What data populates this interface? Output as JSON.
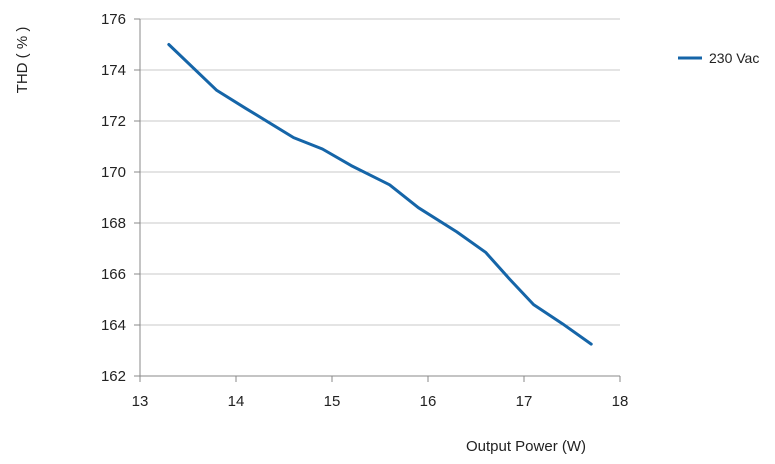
{
  "chart_data": {
    "type": "line",
    "xlabel": "Output Power (W)",
    "ylabel": "THD ( % )",
    "xlim": [
      13,
      18
    ],
    "ylim": [
      162,
      176
    ],
    "x_ticks": [
      13,
      14,
      15,
      16,
      17,
      18
    ],
    "y_ticks": [
      162,
      164,
      166,
      168,
      170,
      172,
      174,
      176
    ],
    "grid": true,
    "legend_position": "top-right",
    "series": [
      {
        "name": "230 Vac",
        "color": "#1565a8",
        "x": [
          13.3,
          13.8,
          14.1,
          14.6,
          14.9,
          15.2,
          15.6,
          15.9,
          16.3,
          16.6,
          16.85,
          17.1,
          17.4,
          17.7
        ],
        "y": [
          175.0,
          173.2,
          172.5,
          171.35,
          170.9,
          170.25,
          169.5,
          168.6,
          167.65,
          166.85,
          165.8,
          164.8,
          164.05,
          163.25
        ]
      }
    ]
  }
}
